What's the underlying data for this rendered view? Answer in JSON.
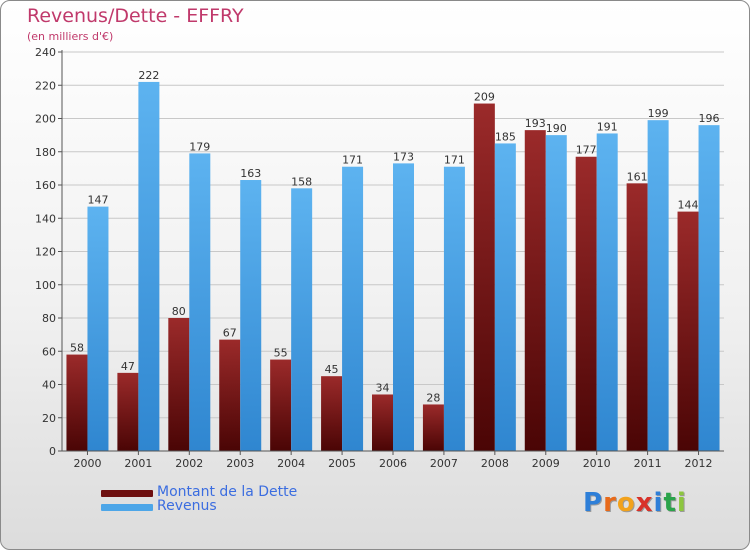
{
  "header": {
    "title": "Revenus/Dette - EFFRY",
    "subtitle": "(en milliers d'€)"
  },
  "legend": {
    "items": [
      {
        "label": "Montant de la Dette",
        "color": "#6e0f0f"
      },
      {
        "label": "Revenus",
        "color": "#4da6e8"
      }
    ]
  },
  "logo": {
    "letters": [
      {
        "ch": "P",
        "color": "#2e7fd8"
      },
      {
        "ch": "r",
        "color": "#e86a1a"
      },
      {
        "ch": "o",
        "color": "#f2a21c"
      },
      {
        "ch": "x",
        "color": "#d8322a"
      },
      {
        "ch": "i",
        "color": "#2e7fd8"
      },
      {
        "ch": "t",
        "color": "#2aa34a"
      },
      {
        "ch": "i",
        "color": "#8dc63f"
      }
    ]
  },
  "chart_data": {
    "type": "bar",
    "title": "Revenus/Dette - EFFRY",
    "subtitle": "(en milliers d'€)",
    "categories": [
      "2000",
      "2001",
      "2002",
      "2003",
      "2004",
      "2005",
      "2006",
      "2007",
      "2008",
      "2009",
      "2010",
      "2011",
      "2012"
    ],
    "series": [
      {
        "name": "Montant de la Dette",
        "color": "#6e0f0f",
        "values": [
          58,
          47,
          80,
          67,
          55,
          45,
          34,
          28,
          209,
          193,
          177,
          161,
          144
        ]
      },
      {
        "name": "Revenus",
        "color": "#4da6e8",
        "values": [
          147,
          222,
          179,
          163,
          158,
          171,
          173,
          171,
          185,
          190,
          191,
          199,
          196
        ]
      }
    ],
    "ylim": [
      0,
      240
    ],
    "yticks": [
      0,
      20,
      40,
      60,
      80,
      100,
      120,
      140,
      160,
      180,
      200,
      220,
      240
    ],
    "grid": true,
    "legend_position": "bottom-left"
  }
}
